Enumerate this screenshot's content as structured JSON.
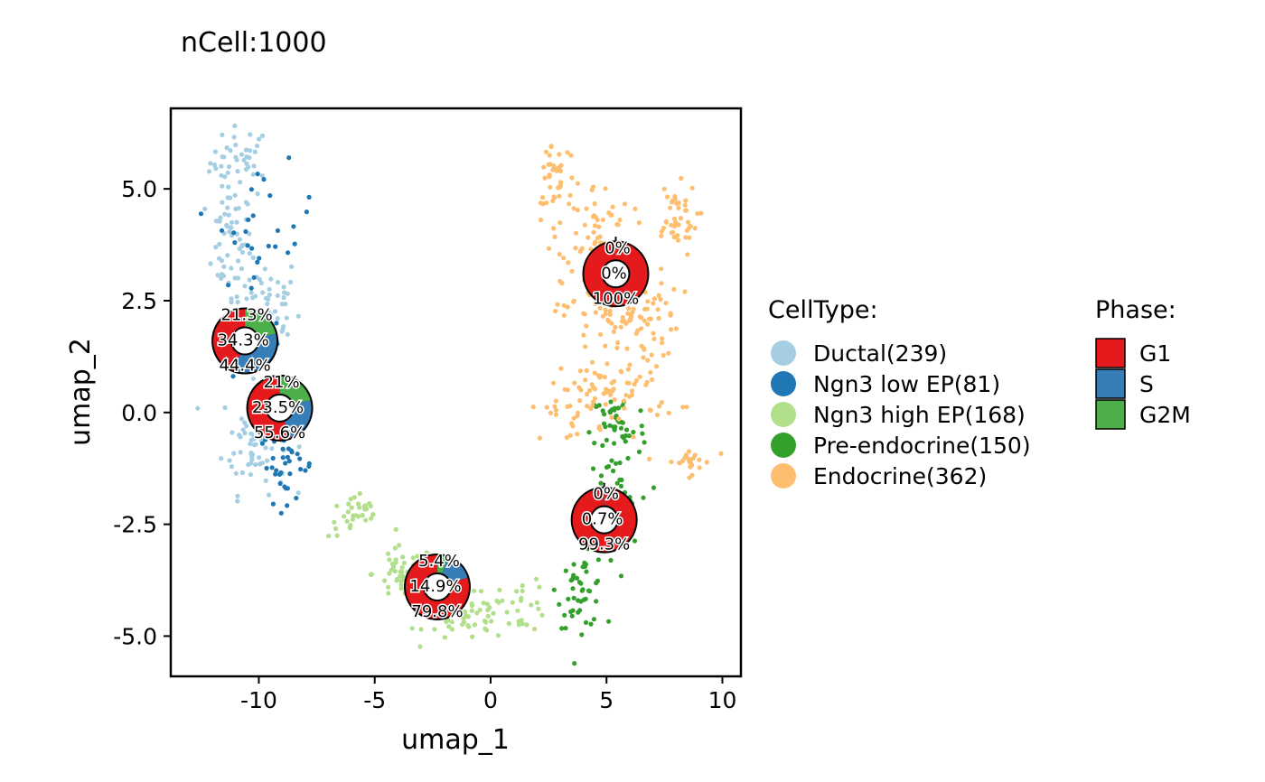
{
  "chart_data": {
    "type": "scatter",
    "title": "nCell:1000",
    "xlabel": "umap_1",
    "ylabel": "umap_2",
    "xlim": [
      -13.8,
      10.8
    ],
    "ylim": [
      -5.9,
      6.8
    ],
    "xticks": [
      -10,
      -5,
      0,
      5,
      10
    ],
    "xtick_labels": [
      "-10",
      "-5",
      "0",
      "5",
      "10"
    ],
    "yticks": [
      -5.0,
      -2.5,
      0.0,
      2.5,
      5.0
    ],
    "ytick_labels": [
      "-5.0",
      "-2.5",
      "0.0",
      "2.5",
      "5.0"
    ],
    "grid": false,
    "legend_placement": "right",
    "celltype_legend": {
      "title": "CellType:",
      "items": [
        {
          "name": "Ductal",
          "label": "Ductal(239)",
          "count": 239,
          "color": "#A6CEE3"
        },
        {
          "name": "Ngn3 low EP",
          "label": "Ngn3 low EP(81)",
          "count": 81,
          "color": "#1F78B4"
        },
        {
          "name": "Ngn3 high EP",
          "label": "Ngn3 high EP(168)",
          "count": 168,
          "color": "#B2DF8A"
        },
        {
          "name": "Pre-endocrine",
          "label": "Pre-endocrine(150)",
          "count": 150,
          "color": "#33A02C"
        },
        {
          "name": "Endocrine",
          "label": "Endocrine(362)",
          "count": 362,
          "color": "#FDBF6F"
        }
      ]
    },
    "phase_legend": {
      "title": "Phase:",
      "items": [
        {
          "name": "G1",
          "label": "G1",
          "color": "#E41A1C"
        },
        {
          "name": "S",
          "label": "S",
          "color": "#377EB8"
        },
        {
          "name": "G2M",
          "label": "G2M",
          "color": "#4DAF4A"
        }
      ]
    },
    "pie_overlays": [
      {
        "celltype": "Ductal",
        "center": [
          -10.6,
          1.6
        ],
        "G1": 44.4,
        "S": 34.3,
        "G2M": 21.3,
        "labels": {
          "G1": "44.4%",
          "S": "34.3%",
          "G2M": "21.3%"
        }
      },
      {
        "celltype": "Ngn3 low EP",
        "center": [
          -9.1,
          0.1
        ],
        "G1": 55.6,
        "S": 23.5,
        "G2M": 21.0,
        "labels": {
          "G1": "55.6%",
          "S": "23.5%",
          "G2M": "21%"
        }
      },
      {
        "celltype": "Ngn3 high EP",
        "center": [
          -2.3,
          -3.9
        ],
        "G1": 79.8,
        "S": 14.9,
        "G2M": 5.4,
        "labels": {
          "G1": "79.8%",
          "S": "14.9%",
          "G2M": "5.4%"
        }
      },
      {
        "celltype": "Pre-endocrine",
        "center": [
          4.9,
          -2.4
        ],
        "G1": 99.3,
        "S": 0.7,
        "G2M": 0.0,
        "labels": {
          "G1": "99.3%",
          "S": "0.7%",
          "G2M": "0%"
        }
      },
      {
        "celltype": "Endocrine",
        "center": [
          5.4,
          3.1
        ],
        "G1": 100,
        "S": 0,
        "G2M": 0,
        "labels": {
          "G1": "100%",
          "S": "0%",
          "G2M": "0%"
        }
      }
    ],
    "point_clusters": [
      {
        "celltype": "Ductal",
        "n": 239,
        "regions": [
          {
            "cx": -10.8,
            "cy": 5.6,
            "rx": 1.3,
            "ry": 0.8,
            "w": 0.18
          },
          {
            "cx": -11.3,
            "cy": 3.8,
            "rx": 1.0,
            "ry": 1.2,
            "w": 0.2
          },
          {
            "cx": -9.8,
            "cy": 2.3,
            "rx": 1.6,
            "ry": 1.3,
            "w": 0.3
          },
          {
            "cx": -10.2,
            "cy": -0.6,
            "rx": 1.4,
            "ry": 1.2,
            "w": 0.32
          }
        ]
      },
      {
        "celltype": "Ngn3 low EP",
        "n": 81,
        "regions": [
          {
            "cx": -9.6,
            "cy": 4.3,
            "rx": 2.0,
            "ry": 1.2,
            "w": 0.3
          },
          {
            "cx": -8.8,
            "cy": -1.2,
            "rx": 1.2,
            "ry": 0.8,
            "w": 0.45
          },
          {
            "cx": -10.5,
            "cy": 1.8,
            "rx": 1.4,
            "ry": 1.6,
            "w": 0.25
          }
        ]
      },
      {
        "celltype": "Ngn3 high EP",
        "n": 168,
        "regions": [
          {
            "cx": -5.8,
            "cy": -2.3,
            "rx": 1.2,
            "ry": 0.5,
            "w": 0.2
          },
          {
            "cx": -3.8,
            "cy": -3.6,
            "rx": 1.3,
            "ry": 0.6,
            "w": 0.3
          },
          {
            "cx": -1.0,
            "cy": -4.6,
            "rx": 1.8,
            "ry": 0.5,
            "w": 0.35
          },
          {
            "cx": 1.3,
            "cy": -4.3,
            "rx": 1.2,
            "ry": 0.6,
            "w": 0.15
          }
        ]
      },
      {
        "celltype": "Pre-endocrine",
        "n": 150,
        "regions": [
          {
            "cx": 3.9,
            "cy": -4.0,
            "rx": 1.0,
            "ry": 0.8,
            "w": 0.3
          },
          {
            "cx": 5.3,
            "cy": -2.2,
            "rx": 1.1,
            "ry": 1.3,
            "w": 0.4
          },
          {
            "cx": 5.5,
            "cy": -0.3,
            "rx": 1.2,
            "ry": 0.8,
            "w": 0.3
          }
        ]
      },
      {
        "celltype": "Endocrine",
        "n": 362,
        "regions": [
          {
            "cx": 2.8,
            "cy": 5.4,
            "rx": 0.9,
            "ry": 0.9,
            "w": 0.1
          },
          {
            "cx": 4.5,
            "cy": 4.2,
            "rx": 1.6,
            "ry": 0.9,
            "w": 0.15
          },
          {
            "cx": 7.9,
            "cy": 4.3,
            "rx": 1.0,
            "ry": 0.8,
            "w": 0.12
          },
          {
            "cx": 5.6,
            "cy": 2.2,
            "rx": 2.5,
            "ry": 1.0,
            "w": 0.3
          },
          {
            "cx": 5.5,
            "cy": 0.5,
            "rx": 2.6,
            "ry": 0.8,
            "w": 0.2
          },
          {
            "cx": 3.2,
            "cy": 0.0,
            "rx": 1.4,
            "ry": 0.6,
            "w": 0.06
          },
          {
            "cx": 8.5,
            "cy": -1.1,
            "rx": 1.1,
            "ry": 0.3,
            "w": 0.07
          }
        ]
      }
    ]
  }
}
